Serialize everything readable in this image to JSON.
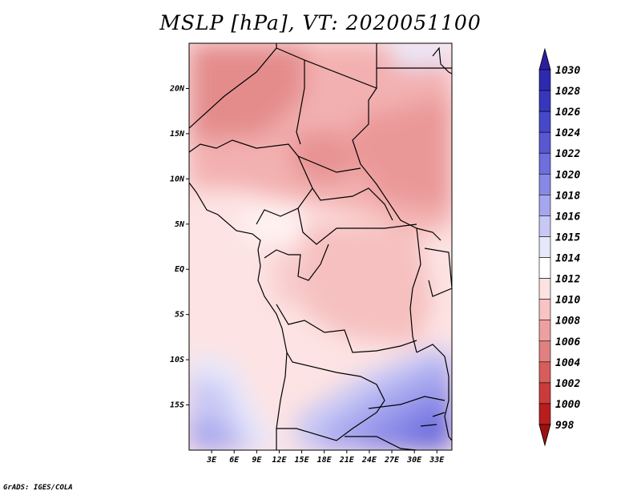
{
  "title": "MSLP [hPa], VT: 2020051100",
  "credit": "GrADS: IGES/COLA",
  "map": {
    "lat_labels": [
      "20N",
      "15N",
      "10N",
      "5N",
      "EQ",
      "5S",
      "10S",
      "15S"
    ],
    "lat_values": [
      20,
      15,
      10,
      5,
      0,
      -5,
      -10,
      -15
    ],
    "lon_labels": [
      "3E",
      "6E",
      "9E",
      "12E",
      "15E",
      "18E",
      "21E",
      "24E",
      "27E",
      "30E",
      "33E"
    ],
    "lon_values": [
      3,
      6,
      9,
      12,
      15,
      18,
      21,
      24,
      27,
      30,
      33
    ],
    "lon_range": [
      0,
      35
    ],
    "lat_range": [
      -20,
      25
    ]
  },
  "colorbar": {
    "levels": [
      "1030",
      "1028",
      "1026",
      "1024",
      "1022",
      "1020",
      "1018",
      "1016",
      "1015",
      "1014",
      "1012",
      "1010",
      "1008",
      "1006",
      "1004",
      "1002",
      "1000",
      "998"
    ],
    "colors": [
      "#2a1fa0",
      "#2d2ab0",
      "#3737bd",
      "#4747c9",
      "#5858d3",
      "#6e6ede",
      "#8888e7",
      "#a6a6ef",
      "#c8c8f5",
      "#e7e7fb",
      "#ffffff",
      "#fde2e2",
      "#f8c3c3",
      "#eea0a0",
      "#e08080",
      "#d75d5d",
      "#cc3b3b",
      "#b81e1e",
      "#9e1010"
    ]
  }
}
